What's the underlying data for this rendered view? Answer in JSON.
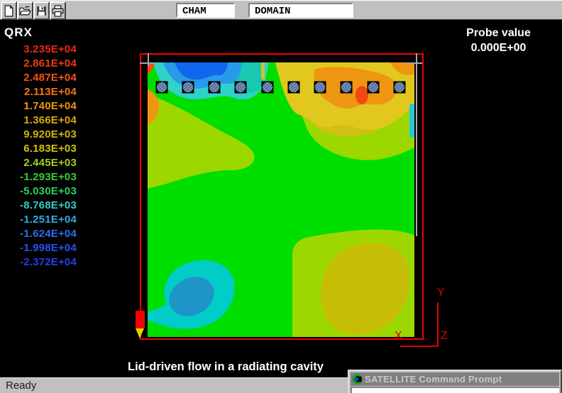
{
  "toolbar": {
    "buttons": [
      {
        "id": "new",
        "icon": "new-document-icon"
      },
      {
        "id": "open",
        "icon": "open-folder-icon"
      },
      {
        "id": "save",
        "icon": "save-floppy-icon"
      },
      {
        "id": "print",
        "icon": "printer-icon"
      }
    ],
    "fields": [
      {
        "id": "package",
        "value": "CHAM"
      },
      {
        "id": "object",
        "value": "DOMAIN"
      }
    ]
  },
  "legend": {
    "title": "QRX",
    "entries": [
      {
        "label": "3.235E+04",
        "color": "#EE2814"
      },
      {
        "label": "2.861E+04",
        "color": "#F13C12"
      },
      {
        "label": "2.487E+04",
        "color": "#F45610"
      },
      {
        "label": "2.113E+04",
        "color": "#F7760E"
      },
      {
        "label": "1.740E+04",
        "color": "#F0960C"
      },
      {
        "label": "1.366E+04",
        "color": "#DCA80A"
      },
      {
        "label": "9.920E+03",
        "color": "#D2B40A"
      },
      {
        "label": "6.183E+03",
        "color": "#D0C20A"
      },
      {
        "label": "2.445E+03",
        "color": "#A6D014"
      },
      {
        "label": "-1.293E+03",
        "color": "#34D032"
      },
      {
        "label": "-5.030E+03",
        "color": "#2CD05E"
      },
      {
        "label": "-8.768E+03",
        "color": "#34CCC0"
      },
      {
        "label": "-1.251E+04",
        "color": "#32AADE"
      },
      {
        "label": "-1.624E+04",
        "color": "#2C6CF0"
      },
      {
        "label": "-1.998E+04",
        "color": "#2852F0"
      },
      {
        "label": "-2.372E+04",
        "color": "#2340E8"
      }
    ]
  },
  "probe": {
    "label": "Probe value",
    "value": "0.000E+00"
  },
  "plot": {
    "caption": "Lid-driven flow in a radiating cavity",
    "frame_color": "#F40000",
    "axis_labels": {
      "x": "X",
      "y": "Y",
      "z": "Z"
    },
    "palette": {
      "green": "#00DE00",
      "chartreuse": "#9CD800",
      "yellow": "#E2C81E",
      "gold": "#C6BE06",
      "goldcore": "#D0C014",
      "orange": "#EE9612",
      "redorange": "#F04A10",
      "red": "#EE5010",
      "cyan": "#2ED2C8",
      "turquoise": "#18C8B0",
      "blue": "#289AE8",
      "darkblue": "#1266EE",
      "cyanblob": "#00CCC8",
      "teal": "#1E94C8",
      "edgecyan": "#28C8D2",
      "streak": "#D8C020"
    },
    "monitors": {
      "y": 35,
      "x_positions": [
        20,
        57,
        94,
        131,
        169,
        206,
        243,
        280,
        318,
        355
      ]
    }
  },
  "status_bar": {
    "text": "Ready"
  },
  "command_window": {
    "title": "SATELLITE Command Prompt",
    "icon": "satellite-icon"
  }
}
